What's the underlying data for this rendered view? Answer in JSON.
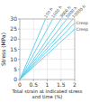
{
  "chart_data": {
    "type": "line",
    "title": "",
    "xlabel": "Total strain at indicated stress\nand time (%)",
    "ylabel": "Stress (MPa)",
    "xlim": [
      0,
      2.0
    ],
    "ylim": [
      0,
      30
    ],
    "xticks": [
      0,
      0.5,
      1,
      1.5,
      2
    ],
    "yticks": [
      0,
      5,
      10,
      15,
      20,
      25,
      30
    ],
    "color": "#55ccee",
    "grid": true,
    "series": [
      {
        "name": "100 h",
        "x": [
          0,
          0.9375
        ],
        "values": [
          0,
          30
        ]
      },
      {
        "name": "1000 h",
        "x": [
          0,
          1.2
        ],
        "values": [
          0,
          30
        ]
      },
      {
        "name": "3000 h",
        "x": [
          0,
          1.5
        ],
        "values": [
          0,
          30
        ]
      },
      {
        "name": "5000 h",
        "x": [
          0,
          1.7142857142857142
        ],
        "values": [
          0,
          30
        ]
      },
      {
        "name": "10000 h",
        "x": [
          0,
          1.935483870967742
        ],
        "values": [
          0,
          30
        ]
      },
      {
        "name": "Creep",
        "x": [
          0,
          2
        ],
        "values": [
          0,
          28
        ]
      },
      {
        "name": "Creep",
        "x": [
          0,
          2
        ],
        "values": [
          0,
          25
        ]
      }
    ]
  }
}
